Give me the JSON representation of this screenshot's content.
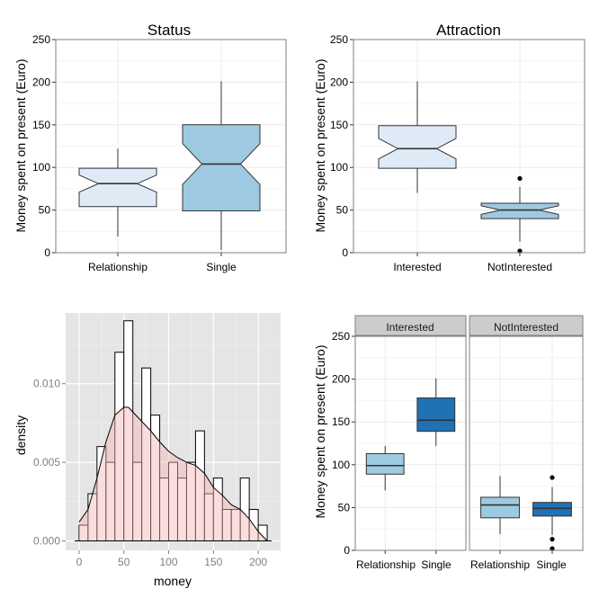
{
  "colors": {
    "light_fill": "#DEEBF7",
    "mid_fill": "#9ECAE1",
    "dark_fill": "#2171B5",
    "density_fill": "#F4B6B6",
    "hist_fill": "#FFFFFF",
    "panel_bg": "#E5E5E5",
    "strip_bg": "#CCCCCC",
    "grid": "#EBEBEB"
  },
  "chart_data": [
    {
      "id": "status",
      "type": "boxplot",
      "notched": true,
      "title": "Status",
      "ylabel": "Money spent on present (Euro)",
      "ylim": [
        0,
        250
      ],
      "yticks": [
        "0",
        "50",
        "100",
        "150",
        "200",
        "250"
      ],
      "categories": [
        "Relationship",
        "Single"
      ],
      "boxes": [
        {
          "category": "Relationship",
          "min": 19,
          "q1": 54,
          "median": 81,
          "q3": 99,
          "max": 122,
          "notch_low": 71,
          "notch_high": 91,
          "fill": "light",
          "outliers": []
        },
        {
          "category": "Single",
          "min": 3,
          "q1": 49,
          "median": 104,
          "q3": 150,
          "max": 201,
          "notch_low": 80,
          "notch_high": 128,
          "fill": "mid",
          "outliers": []
        }
      ]
    },
    {
      "id": "attraction",
      "type": "boxplot",
      "notched": true,
      "title": "Attraction",
      "ylabel": "Money spent on present (Euro)",
      "ylim": [
        0,
        250
      ],
      "yticks": [
        "0",
        "50",
        "100",
        "150",
        "200",
        "250"
      ],
      "categories": [
        "Interested",
        "NotInterested"
      ],
      "boxes": [
        {
          "category": "Interested",
          "min": 70,
          "q1": 99,
          "median": 122,
          "q3": 149,
          "max": 201,
          "notch_low": 110,
          "notch_high": 134,
          "fill": "light",
          "outliers": []
        },
        {
          "category": "NotInterested",
          "min": 13,
          "q1": 40,
          "median": 50,
          "q3": 58,
          "max": 77,
          "notch_low": 45,
          "notch_high": 55,
          "fill": "mid",
          "outliers": [
            87,
            2
          ]
        }
      ]
    },
    {
      "id": "histogram",
      "type": "histogram",
      "xlabel": "money",
      "ylabel": "density",
      "xlim": [
        -15,
        225
      ],
      "ylim": [
        -0.0006,
        0.0145
      ],
      "xticks": [
        "0",
        "50",
        "100",
        "150",
        "200"
      ],
      "yticks": [
        "0.000",
        "0.005",
        "0.010"
      ],
      "bin_width": 10,
      "bins": [
        {
          "x0": 0,
          "density": 0.001
        },
        {
          "x0": 10,
          "density": 0.003
        },
        {
          "x0": 20,
          "density": 0.006
        },
        {
          "x0": 30,
          "density": 0.005
        },
        {
          "x0": 40,
          "density": 0.012
        },
        {
          "x0": 50,
          "density": 0.014
        },
        {
          "x0": 60,
          "density": 0.005
        },
        {
          "x0": 70,
          "density": 0.011
        },
        {
          "x0": 80,
          "density": 0.008
        },
        {
          "x0": 90,
          "density": 0.004
        },
        {
          "x0": 100,
          "density": 0.005
        },
        {
          "x0": 110,
          "density": 0.004
        },
        {
          "x0": 120,
          "density": 0.005
        },
        {
          "x0": 130,
          "density": 0.007
        },
        {
          "x0": 140,
          "density": 0.003
        },
        {
          "x0": 150,
          "density": 0.004
        },
        {
          "x0": 160,
          "density": 0.002
        },
        {
          "x0": 170,
          "density": 0.002
        },
        {
          "x0": 180,
          "density": 0.004
        },
        {
          "x0": 190,
          "density": 0.002
        },
        {
          "x0": 200,
          "density": 0.001
        }
      ],
      "density_curve": {
        "x": [
          0,
          10,
          20,
          30,
          40,
          50,
          55,
          60,
          70,
          80,
          90,
          100,
          110,
          120,
          130,
          140,
          150,
          160,
          170,
          180,
          190,
          200,
          210
        ],
        "y": [
          0.0012,
          0.002,
          0.004,
          0.0063,
          0.008,
          0.0085,
          0.0085,
          0.0082,
          0.0076,
          0.007,
          0.0063,
          0.0057,
          0.0053,
          0.005,
          0.0048,
          0.0043,
          0.0034,
          0.0029,
          0.0023,
          0.002,
          0.0014,
          0.0006,
          0.0
        ]
      }
    },
    {
      "id": "facet",
      "type": "boxplot",
      "notched": false,
      "ylabel": "Money spent on present (Euro)",
      "ylim": [
        0,
        250
      ],
      "yticks": [
        "0",
        "50",
        "100",
        "150",
        "200",
        "250"
      ],
      "facets": [
        {
          "strip": "Interested",
          "categories": [
            "Relationship",
            "Single"
          ],
          "boxes": [
            {
              "category": "Relationship",
              "min": 70,
              "q1": 89,
              "median": 99,
              "q3": 113,
              "max": 122,
              "fill": "mid",
              "outliers": []
            },
            {
              "category": "Single",
              "min": 122,
              "q1": 139,
              "median": 152,
              "q3": 178,
              "max": 201,
              "fill": "dark",
              "outliers": []
            }
          ]
        },
        {
          "strip": "NotInterested",
          "categories": [
            "Relationship",
            "Single"
          ],
          "boxes": [
            {
              "category": "Relationship",
              "min": 19,
              "q1": 38,
              "median": 53,
              "q3": 62,
              "max": 87,
              "fill": "mid",
              "outliers": []
            },
            {
              "category": "Single",
              "min": 18,
              "q1": 40,
              "median": 49,
              "q3": 56,
              "max": 74,
              "fill": "dark",
              "outliers": [
                85,
                13,
                2
              ]
            }
          ]
        }
      ]
    }
  ]
}
